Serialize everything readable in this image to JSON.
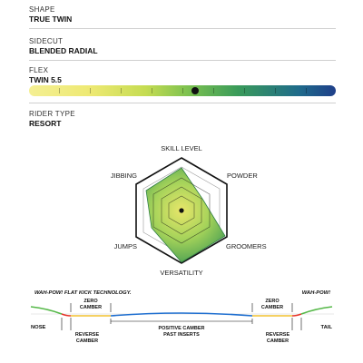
{
  "specs": {
    "shape": {
      "label": "SHAPE",
      "value": "TRUE TWIN"
    },
    "sidecut": {
      "label": "SIDECUT",
      "value": "BLENDED RADIAL"
    },
    "flex": {
      "label": "FLEX",
      "value": "TWIN 5.5",
      "level": 5.5,
      "scale_max": 10
    },
    "rider_type": {
      "label": "RIDER TYPE",
      "value": "RESORT"
    }
  },
  "radar": {
    "axes": [
      "SKILL LEVEL",
      "POWDER",
      "GROOMERS",
      "VERSATILITY",
      "JUMPS",
      "JIBBING"
    ],
    "fill_color": "#3f9f52"
  },
  "profile": {
    "tech_left": "WAH-POW! FLAT KICK TECHNOLOGY.",
    "tech_right": "WAH-POW!",
    "zero_camber_left": [
      "ZERO",
      "CAMBER"
    ],
    "zero_camber_right": [
      "ZERO",
      "CAMBER"
    ],
    "positive_camber": [
      "POSITIVE CAMBER",
      "PAST INSERTS"
    ],
    "reverse_camber_left": [
      "REVERSE",
      "CAMBER"
    ],
    "reverse_camber_right": [
      "REVERSE",
      "CAMBER"
    ],
    "nose": "NOSE",
    "tail": "TAIL",
    "colors": {
      "rocker": "#e8352b",
      "zero": "#f2c230",
      "camber": "#1f6fd0",
      "kick": "#55b848"
    }
  }
}
